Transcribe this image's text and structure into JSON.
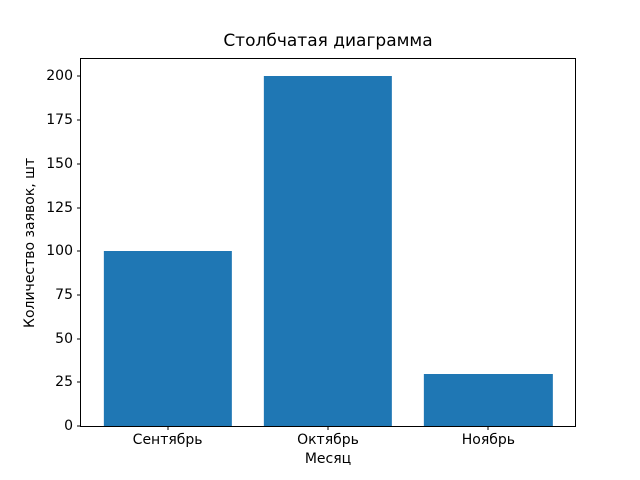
{
  "chart_data": {
    "type": "bar",
    "title": "Столбчатая диаграмма",
    "xlabel": "Месяц",
    "ylabel": "Количество заявок, шт",
    "categories": [
      "Сентябрь",
      "Октябрь",
      "Ноябрь"
    ],
    "values": [
      100,
      200,
      30
    ],
    "yticks": [
      0,
      25,
      50,
      75,
      100,
      125,
      150,
      175,
      200
    ],
    "ylim": [
      0,
      210
    ],
    "xlim": [
      -0.54,
      2.54
    ],
    "bar_width": 0.8,
    "bar_color": "#1f77b4",
    "background_color": "#ffffff",
    "spine_color": "#000000",
    "grid": false,
    "legend": "none"
  }
}
